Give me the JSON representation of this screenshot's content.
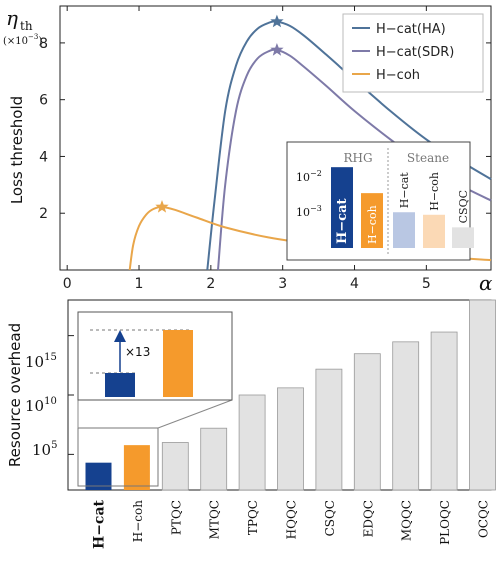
{
  "colors": {
    "ha": "#4f7399",
    "sdr": "#7e7aa8",
    "coh": "#e9a64a",
    "cat_bar": "#15418f",
    "coh_bar": "#f59a2c",
    "gray_bar": "#e2e2e2",
    "inset_lightblue": "#b9c7e3",
    "inset_lightorange": "#fbd9b5"
  },
  "chart_data": [
    {
      "type": "line",
      "ylabel": "Loss threshold",
      "y_symbol": "η",
      "y_symbol_sub": "th",
      "y_scale_label": "(×10",
      "y_scale_exp": "−3",
      "y_scale_close": ")",
      "x_symbol": "α",
      "xlim": [
        -0.1,
        5.9
      ],
      "ylim": [
        0,
        9.3
      ],
      "xticks": [
        "0",
        "1",
        "2",
        "3",
        "4",
        "5"
      ],
      "yticks": [
        "2",
        "4",
        "6",
        "8"
      ],
      "legend_position": "top-right",
      "series": [
        {
          "name": "H−cat(HA)",
          "color_key": "ha",
          "peak": [
            2.92,
            8.75
          ],
          "x": [
            1.95,
            2.05,
            2.2,
            2.35,
            2.5,
            2.65,
            2.8,
            2.92,
            3.1,
            3.3,
            3.6,
            4.0,
            4.5,
            5.0,
            5.5,
            5.9
          ],
          "y": [
            0.0,
            2.4,
            5.6,
            7.2,
            8.05,
            8.5,
            8.7,
            8.75,
            8.6,
            8.25,
            7.6,
            6.7,
            5.6,
            4.6,
            3.8,
            3.2
          ]
        },
        {
          "name": "H−cat(SDR)",
          "color_key": "sdr",
          "peak": [
            2.92,
            7.75
          ],
          "x": [
            2.1,
            2.2,
            2.35,
            2.5,
            2.65,
            2.8,
            2.92,
            3.1,
            3.3,
            3.6,
            4.0,
            4.5,
            5.0,
            5.5,
            5.9
          ],
          "y": [
            0.0,
            3.0,
            5.6,
            6.85,
            7.45,
            7.7,
            7.75,
            7.55,
            7.15,
            6.5,
            5.6,
            4.6,
            3.7,
            2.95,
            2.45
          ]
        },
        {
          "name": "H−coh",
          "color_key": "coh",
          "peak": [
            1.32,
            2.22
          ],
          "x": [
            0.87,
            0.92,
            1.0,
            1.1,
            1.2,
            1.32,
            1.5,
            1.8,
            2.2,
            2.8,
            3.5,
            4.2,
            5.0,
            5.9
          ],
          "y": [
            0.0,
            0.9,
            1.55,
            1.95,
            2.15,
            2.22,
            2.12,
            1.85,
            1.5,
            1.15,
            0.88,
            0.68,
            0.5,
            0.35
          ]
        }
      ],
      "inset": {
        "type": "bar",
        "log_scale": true,
        "group_labels": [
          "RHG",
          "Steane"
        ],
        "ytick_labels": [
          {
            "base": "10",
            "exp": "−2"
          },
          {
            "base": "10",
            "exp": "−3"
          }
        ],
        "ylim": [
          0.0001,
          0.025
        ],
        "bars": [
          {
            "label": "H−cat",
            "value": 0.0095,
            "color_key": "cat_bar"
          },
          {
            "label": "H−coh",
            "value": 0.0022,
            "color_key": "coh_bar"
          },
          {
            "label": "H−cat",
            "value": 0.00075,
            "color_key": "inset_lightblue"
          },
          {
            "label": "H−coh",
            "value": 0.00065,
            "color_key": "inset_lightorange"
          },
          {
            "label": "CSQC",
            "value": 0.00032,
            "color_key": "gray_bar"
          }
        ]
      }
    },
    {
      "type": "bar",
      "log_scale": true,
      "ylabel": "Resource overhead",
      "ytick_labels": [
        {
          "base": "10",
          "exp": "15"
        },
        {
          "base": "10",
          "exp": "10"
        },
        {
          "base": "10",
          "exp": "5"
        }
      ],
      "categories": [
        "H−cat",
        "H−coh",
        "PTQC",
        "MTQC",
        "TPQC",
        "HQQC",
        "CSQC",
        "EDQC",
        "MQQC",
        "PLOQC",
        "OCQC"
      ],
      "values": [
        20000.0,
        600000.0,
        1000000.0,
        16000000.0,
        10000000000.0,
        40000000000.0,
        1500000000000.0,
        30000000000000.0,
        300000000000000.0,
        2000000000000000.0,
        1e+18
      ],
      "bar_color_keys": [
        "cat_bar",
        "coh_bar",
        "gray_bar",
        "gray_bar",
        "gray_bar",
        "gray_bar",
        "gray_bar",
        "gray_bar",
        "gray_bar",
        "gray_bar",
        "gray_bar"
      ],
      "ylim": [
        100.0,
        1e+18
      ],
      "zoom_annotation": "×13"
    }
  ]
}
